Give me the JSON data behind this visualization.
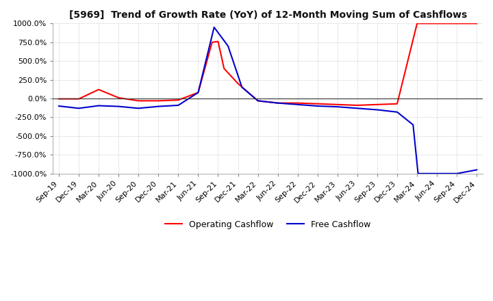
{
  "title": "[5969]  Trend of Growth Rate (YoY) of 12-Month Moving Sum of Cashflows",
  "ylim": [
    -1000,
    1000
  ],
  "yticks": [
    -1000,
    -750,
    -500,
    -250,
    0,
    250,
    500,
    750,
    1000
  ],
  "background_color": "#ffffff",
  "plot_bg_color": "#ffffff",
  "grid_color": "#aaaaaa",
  "line_colors": {
    "operating": "#ff0000",
    "free": "#0000cc"
  },
  "legend": {
    "operating": "Operating Cashflow",
    "free": "Free Cashflow"
  },
  "x_labels": [
    "Sep-19",
    "Dec-19",
    "Mar-20",
    "Jun-20",
    "Sep-20",
    "Dec-20",
    "Mar-21",
    "Jun-21",
    "Sep-21",
    "Dec-21",
    "Mar-22",
    "Jun-22",
    "Sep-22",
    "Dec-22",
    "Mar-23",
    "Jun-23",
    "Sep-23",
    "Dec-23",
    "Mar-24",
    "Jun-24",
    "Sep-24",
    "Dec-24"
  ],
  "operating_x_fine": [
    0,
    1,
    2,
    3,
    4,
    5,
    6,
    7,
    7.7,
    8.0,
    8.3,
    9.0,
    10,
    11,
    12,
    13,
    14,
    15,
    16,
    17,
    18,
    18.05,
    18.3,
    19,
    20,
    21
  ],
  "operating_y_fine": [
    -5,
    -5,
    120,
    10,
    -30,
    -30,
    -20,
    80,
    750,
    760,
    400,
    200,
    -30,
    -60,
    -60,
    -70,
    -80,
    -90,
    -80,
    -70,
    1000,
    1000,
    1000,
    1000,
    1000,
    1000
  ],
  "free_x_fine": [
    0,
    1,
    2,
    3,
    4,
    5,
    6,
    7,
    7.8,
    8.5,
    9.2,
    10,
    11,
    12,
    13,
    14,
    15,
    16,
    17,
    17.8,
    18.05,
    19,
    20,
    21
  ],
  "free_y_fine": [
    -100,
    -130,
    -95,
    -105,
    -130,
    -105,
    -90,
    80,
    950,
    700,
    150,
    -30,
    -60,
    -80,
    -100,
    -110,
    -130,
    -150,
    -180,
    -350,
    -1000,
    -1000,
    -1000,
    -950
  ]
}
